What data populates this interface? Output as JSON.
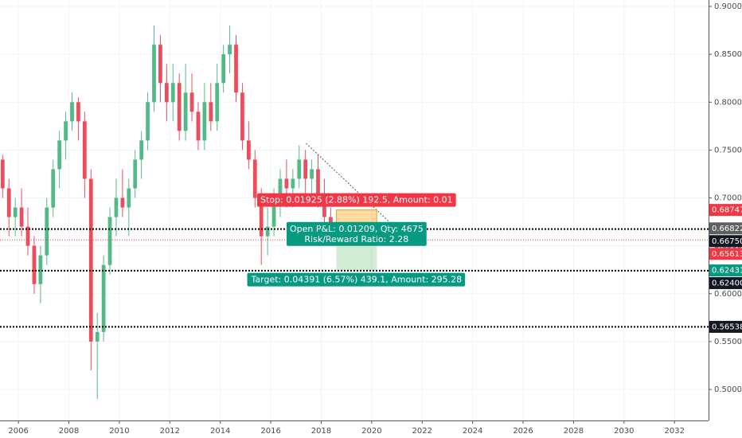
{
  "chart_data": {
    "type": "candlestick",
    "xlim": [
      2005.27,
      2033.35
    ],
    "xticks": [
      2006,
      2008,
      2010,
      2012,
      2014,
      2016,
      2018,
      2020,
      2022,
      2024,
      2026,
      2028,
      2030,
      2032
    ],
    "ylim": [
      0.4676,
      0.9067
    ],
    "yticks": [
      {
        "value": 0.5,
        "label": "0.50000"
      },
      {
        "value": 0.55,
        "label": "0.55000"
      },
      {
        "value": 0.6,
        "label": "0.60000"
      },
      {
        "value": 0.65,
        "label": "0.65000"
      },
      {
        "value": 0.7,
        "label": "0.70000"
      },
      {
        "value": 0.75,
        "label": "0.75000"
      },
      {
        "value": 0.8,
        "label": "0.80000"
      },
      {
        "value": 0.85,
        "label": "0.85000"
      },
      {
        "value": 0.9,
        "label": "0.90000"
      }
    ],
    "grid": true,
    "up_color": "#53b987",
    "down_color": "#eb4d5c",
    "x": [
      2005.375,
      2005.625,
      2005.875,
      2006.125,
      2006.375,
      2006.625,
      2006.875,
      2007.125,
      2007.375,
      2007.625,
      2007.875,
      2008.125,
      2008.375,
      2008.625,
      2008.875,
      2009.125,
      2009.375,
      2009.625,
      2009.875,
      2010.125,
      2010.375,
      2010.625,
      2010.875,
      2011.125,
      2011.375,
      2011.625,
      2011.875,
      2012.125,
      2012.375,
      2012.625,
      2012.875,
      2013.125,
      2013.375,
      2013.625,
      2013.875,
      2014.125,
      2014.375,
      2014.625,
      2014.875,
      2015.125,
      2015.375,
      2015.625,
      2015.875,
      2016.125,
      2016.375,
      2016.625,
      2016.875,
      2017.125,
      2017.375,
      2017.625,
      2017.875,
      2018.125,
      2018.375
    ],
    "open": [
      0.74,
      0.71,
      0.68,
      0.69,
      0.67,
      0.65,
      0.61,
      0.64,
      0.69,
      0.73,
      0.76,
      0.78,
      0.8,
      0.78,
      0.72,
      0.55,
      0.56,
      0.63,
      0.68,
      0.7,
      0.69,
      0.71,
      0.74,
      0.76,
      0.8,
      0.86,
      0.82,
      0.8,
      0.82,
      0.77,
      0.81,
      0.79,
      0.76,
      0.8,
      0.78,
      0.82,
      0.85,
      0.86,
      0.81,
      0.76,
      0.74,
      0.7,
      0.66,
      0.67,
      0.7,
      0.72,
      0.71,
      0.72,
      0.74,
      0.72,
      0.73,
      0.7,
      0.68
    ],
    "high": [
      0.745,
      0.72,
      0.7,
      0.71,
      0.69,
      0.66,
      0.65,
      0.7,
      0.74,
      0.77,
      0.79,
      0.81,
      0.805,
      0.79,
      0.73,
      0.58,
      0.64,
      0.69,
      0.72,
      0.73,
      0.72,
      0.75,
      0.77,
      0.81,
      0.88,
      0.87,
      0.84,
      0.84,
      0.83,
      0.84,
      0.83,
      0.8,
      0.82,
      0.82,
      0.84,
      0.86,
      0.88,
      0.87,
      0.82,
      0.78,
      0.75,
      0.71,
      0.69,
      0.71,
      0.73,
      0.74,
      0.73,
      0.755,
      0.75,
      0.74,
      0.745,
      0.72,
      0.69
    ],
    "low": [
      0.7,
      0.66,
      0.66,
      0.66,
      0.64,
      0.6,
      0.59,
      0.63,
      0.68,
      0.71,
      0.74,
      0.77,
      0.76,
      0.7,
      0.52,
      0.49,
      0.55,
      0.62,
      0.66,
      0.68,
      0.66,
      0.7,
      0.72,
      0.75,
      0.79,
      0.8,
      0.78,
      0.78,
      0.76,
      0.76,
      0.78,
      0.75,
      0.75,
      0.77,
      0.77,
      0.81,
      0.83,
      0.8,
      0.75,
      0.73,
      0.69,
      0.63,
      0.64,
      0.66,
      0.68,
      0.69,
      0.69,
      0.71,
      0.7,
      0.7,
      0.69,
      0.67,
      0.665
    ],
    "close": [
      0.71,
      0.68,
      0.69,
      0.67,
      0.65,
      0.61,
      0.64,
      0.69,
      0.73,
      0.76,
      0.78,
      0.8,
      0.78,
      0.72,
      0.55,
      0.56,
      0.63,
      0.68,
      0.7,
      0.69,
      0.71,
      0.74,
      0.76,
      0.8,
      0.86,
      0.82,
      0.8,
      0.82,
      0.77,
      0.81,
      0.79,
      0.76,
      0.8,
      0.78,
      0.82,
      0.85,
      0.86,
      0.81,
      0.76,
      0.74,
      0.7,
      0.66,
      0.67,
      0.7,
      0.72,
      0.71,
      0.72,
      0.74,
      0.72,
      0.73,
      0.7,
      0.68,
      0.67
    ],
    "levels": [
      {
        "value": 0.6675,
        "label": "0.66750"
      },
      {
        "value": 0.624,
        "label": "0.62400"
      },
      {
        "value": 0.56538,
        "label": "0.56538"
      }
    ],
    "current_price": {
      "value": 0.65613,
      "label": "0.65613",
      "color": "#f23645"
    },
    "price_tags": [
      {
        "value": 0.68747,
        "label": "0.68747",
        "color": "#f23645"
      },
      {
        "value": 0.66822,
        "label": "0.66822",
        "color": "#606060"
      },
      {
        "value": 0.62431,
        "label": "0.62431",
        "color": "#089981"
      }
    ],
    "trendline": {
      "x": [
        2017.4,
        2021.1
      ],
      "y": [
        0.757,
        0.665
      ]
    },
    "position": {
      "entry": 0.66822,
      "stop": 0.68747,
      "target": 0.62431,
      "x_start": 2018.6,
      "x_end": 2020.2,
      "stop_label": "Stop: 0.01925 (2.88%) 192.5, Amount: 0.01",
      "pnl_label": "Open P&L: 0.01209, Qty: 4675",
      "rr_label": "Risk/Reward Ratio: 2.28",
      "target_label": "Target: 0.04391 (6.57%) 439.1, Amount: 295.28"
    }
  }
}
